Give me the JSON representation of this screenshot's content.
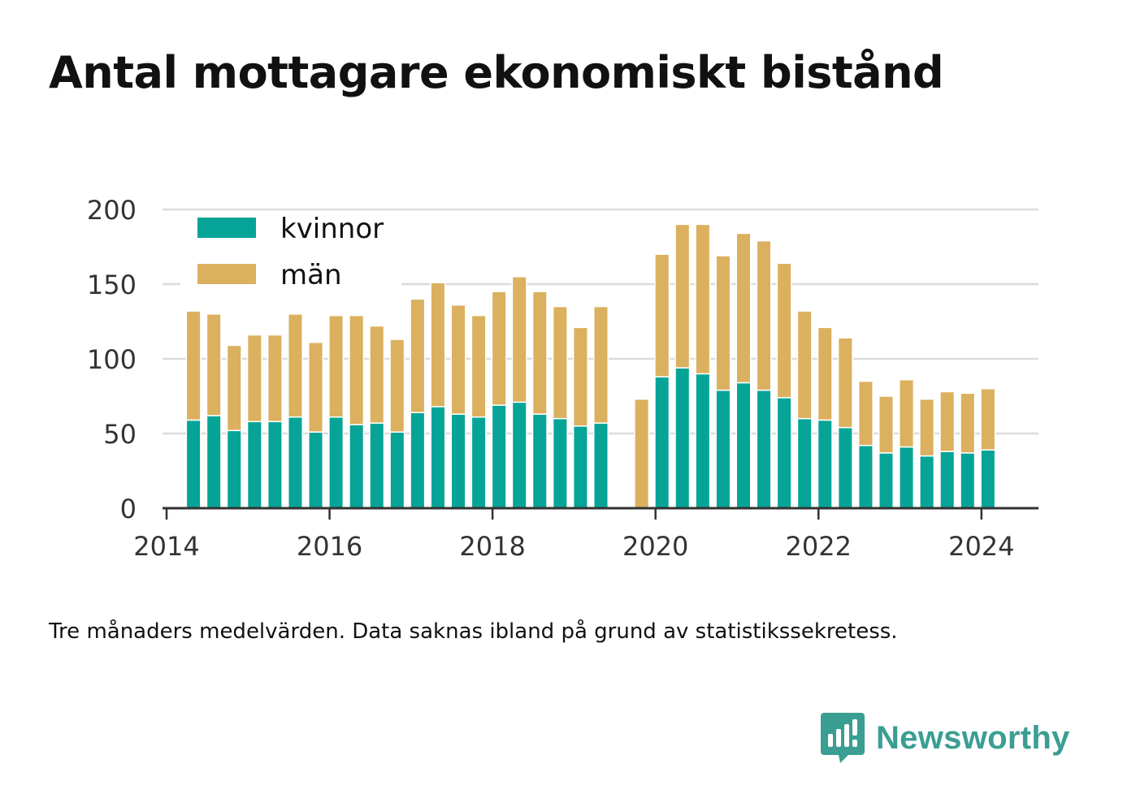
{
  "title": "Antal mottagare ekonomiskt bistånd",
  "note": "Tre månaders medelvärden. Data saknas ibland på grund av statistikssekretess.",
  "brand": {
    "name": "Newsworthy",
    "color": "#3a9e93",
    "icon": "bar-chart-speech-bubble-icon"
  },
  "colors": {
    "kvinnor": "#05a497",
    "man": "#dbb05e",
    "grid": "#dcdcdc",
    "axis": "#333333"
  },
  "chart_data": {
    "type": "bar",
    "stacked": true,
    "ylim": [
      0,
      200
    ],
    "yticks": [
      0,
      50,
      100,
      150,
      200
    ],
    "xticks": [
      "2014",
      "2016",
      "2018",
      "2020",
      "2022",
      "2024"
    ],
    "xlim": [
      2013.95,
      2024.7
    ],
    "grid": true,
    "legend_position": "top-left",
    "x": [
      2014.33,
      2014.58,
      2014.83,
      2015.08,
      2015.33,
      2015.58,
      2015.83,
      2016.08,
      2016.33,
      2016.58,
      2016.83,
      2017.08,
      2017.33,
      2017.58,
      2017.83,
      2018.08,
      2018.33,
      2018.58,
      2018.83,
      2019.08,
      2019.33,
      2019.83,
      2020.08,
      2020.33,
      2020.58,
      2020.83,
      2021.08,
      2021.33,
      2021.58,
      2021.83,
      2022.08,
      2022.33,
      2022.58,
      2022.83,
      2023.08,
      2023.33,
      2023.58,
      2023.83,
      2024.08
    ],
    "series": [
      {
        "name": "kvinnor",
        "color": "#05a497",
        "values": [
          59,
          62,
          52,
          58,
          58,
          61,
          51,
          61,
          56,
          57,
          51,
          64,
          68,
          63,
          61,
          69,
          71,
          63,
          60,
          55,
          57,
          null,
          88,
          94,
          90,
          79,
          84,
          79,
          74,
          60,
          59,
          54,
          42,
          37,
          41,
          35,
          38,
          37,
          39
        ]
      },
      {
        "name": "män",
        "color": "#dbb05e",
        "values": [
          73,
          68,
          57,
          58,
          58,
          69,
          60,
          68,
          73,
          65,
          62,
          76,
          83,
          73,
          68,
          76,
          84,
          82,
          75,
          66,
          78,
          73,
          82,
          96,
          100,
          90,
          100,
          100,
          90,
          72,
          62,
          60,
          43,
          38,
          45,
          38,
          40,
          40,
          41
        ]
      }
    ]
  }
}
